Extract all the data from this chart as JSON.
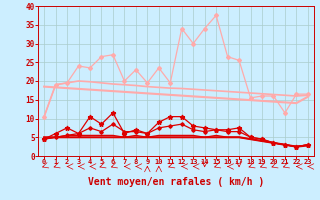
{
  "bg_color": "#cceeff",
  "grid_color": "#aacccc",
  "xlabel": "Vent moyen/en rafales ( km/h )",
  "xlabel_color": "#cc0000",
  "xlabel_fontsize": 7,
  "xtick_labels": [
    "0",
    "1",
    "2",
    "3",
    "4",
    "5",
    "6",
    "7",
    "8",
    "9",
    "10",
    "11",
    "12",
    "13",
    "14",
    "15",
    "16",
    "17",
    "18",
    "19",
    "20",
    "21",
    "22",
    "23"
  ],
  "ytick_labels": [
    "0",
    "5",
    "10",
    "15",
    "20",
    "25",
    "30",
    "35",
    "40"
  ],
  "ylim": [
    0,
    40
  ],
  "xlim": [
    -0.5,
    23.5
  ],
  "tick_color": "#cc0000",
  "line_rafales_jagged": [
    10.5,
    19.0,
    19.5,
    24.0,
    23.5,
    26.5,
    27.0,
    20.0,
    23.0,
    19.5,
    23.5,
    19.5,
    34.0,
    30.0,
    34.0,
    37.5,
    26.5,
    25.5,
    15.5,
    16.0,
    16.0,
    11.5,
    16.5,
    16.5
  ],
  "line_rafales_smooth": [
    10.5,
    19.0,
    19.5,
    20.0,
    19.8,
    19.5,
    19.2,
    19.0,
    18.8,
    18.5,
    18.3,
    18.1,
    18.0,
    17.8,
    17.6,
    17.4,
    17.2,
    17.0,
    16.8,
    16.6,
    16.4,
    16.2,
    16.0,
    16.2
  ],
  "line_rafales_trend": [
    18.5,
    18.3,
    18.1,
    17.9,
    17.7,
    17.5,
    17.3,
    17.1,
    16.9,
    16.7,
    16.5,
    16.3,
    16.1,
    15.9,
    15.7,
    15.5,
    15.3,
    15.1,
    14.9,
    14.7,
    14.5,
    14.3,
    14.1,
    15.8
  ],
  "line_pink_color": "#ffaaaa",
  "line_vent_jagged": [
    4.5,
    6.0,
    7.5,
    6.0,
    10.5,
    8.5,
    11.5,
    6.0,
    7.0,
    6.0,
    9.0,
    10.5,
    10.5,
    8.0,
    7.5,
    7.0,
    7.0,
    7.5,
    5.0,
    4.5,
    3.5,
    3.0,
    2.5,
    3.0
  ],
  "line_vent_mid": [
    4.5,
    5.0,
    5.5,
    6.0,
    7.5,
    6.5,
    8.5,
    6.5,
    6.5,
    6.0,
    7.5,
    8.0,
    8.5,
    7.0,
    6.5,
    7.0,
    6.5,
    6.5,
    5.0,
    4.5,
    3.5,
    3.0,
    2.5,
    3.0
  ],
  "line_vent_smooth": [
    4.5,
    5.0,
    5.5,
    5.5,
    5.5,
    5.5,
    5.5,
    5.0,
    5.5,
    5.0,
    5.5,
    5.5,
    5.5,
    5.5,
    5.0,
    5.5,
    5.0,
    5.0,
    4.5,
    4.0,
    3.5,
    3.0,
    2.5,
    3.0
  ],
  "line_vent_trend": [
    5.0,
    5.0,
    5.0,
    5.0,
    5.0,
    5.0,
    5.0,
    5.0,
    5.0,
    5.0,
    5.0,
    5.0,
    5.0,
    5.0,
    5.0,
    5.0,
    5.0,
    5.0,
    4.5,
    4.0,
    3.5,
    3.0,
    2.5,
    2.8
  ],
  "line_red_color": "#dd0000",
  "arrow_angles": [
    225,
    225,
    180,
    180,
    180,
    225,
    225,
    180,
    180,
    90,
    90,
    225,
    180,
    180,
    270,
    225,
    180,
    270,
    225,
    225,
    225,
    225,
    180,
    180
  ]
}
